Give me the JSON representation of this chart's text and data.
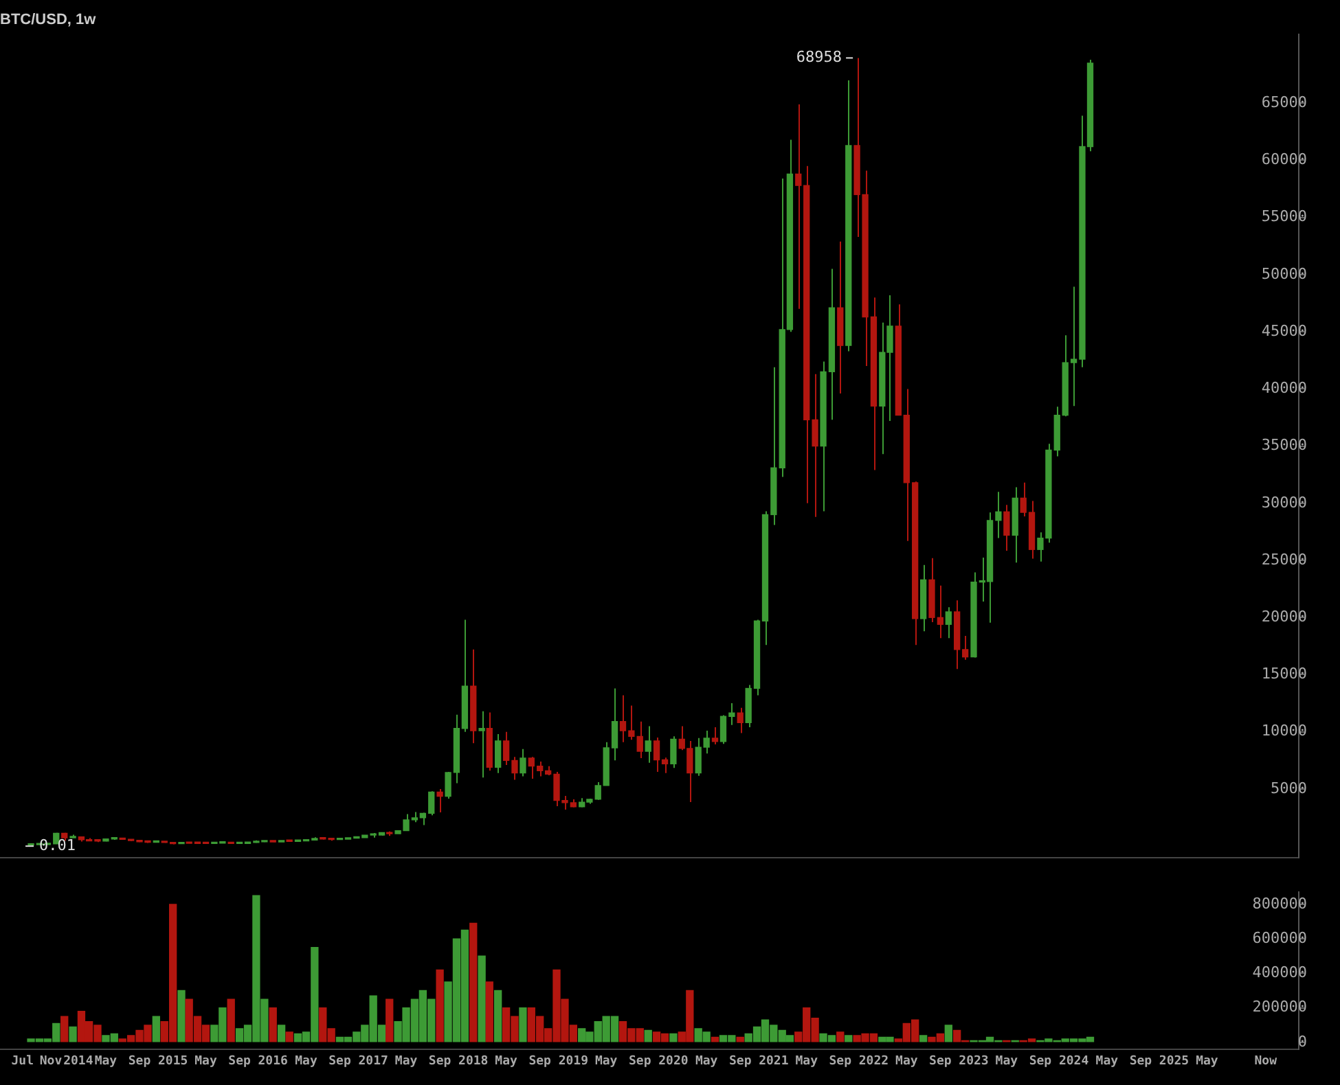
{
  "chart_data": [
    {
      "type": "candlestick",
      "title": "BTC/USD, 1w",
      "x": [
        "2013-08",
        "2013-09",
        "2013-10",
        "2013-11",
        "2013-12",
        "2014-01",
        "2014-02",
        "2014-03",
        "2014-04",
        "2014-05",
        "2014-06",
        "2014-07",
        "2014-08",
        "2014-09",
        "2014-10",
        "2014-11",
        "2014-12",
        "2015-01",
        "2015-02",
        "2015-03",
        "2015-04",
        "2015-05",
        "2015-06",
        "2015-07",
        "2015-08",
        "2015-09",
        "2015-10",
        "2015-11",
        "2015-12",
        "2016-01",
        "2016-02",
        "2016-03",
        "2016-04",
        "2016-05",
        "2016-06",
        "2016-07",
        "2016-08",
        "2016-09",
        "2016-10",
        "2016-11",
        "2016-12",
        "2017-01",
        "2017-02",
        "2017-03",
        "2017-04",
        "2017-05",
        "2017-06",
        "2017-07",
        "2017-08",
        "2017-09",
        "2017-10",
        "2017-11",
        "2017-12",
        "2018-01",
        "2018-02",
        "2018-03",
        "2018-04",
        "2018-05",
        "2018-06",
        "2018-07",
        "2018-08",
        "2018-09",
        "2018-10",
        "2018-11",
        "2018-12",
        "2019-01",
        "2019-02",
        "2019-03",
        "2019-04",
        "2019-05",
        "2019-06",
        "2019-07",
        "2019-08",
        "2019-09",
        "2019-10",
        "2019-11",
        "2019-12",
        "2020-01",
        "2020-02",
        "2020-03",
        "2020-04",
        "2020-05",
        "2020-06",
        "2020-07",
        "2020-08",
        "2020-09",
        "2020-10",
        "2020-11",
        "2020-12",
        "2021-01",
        "2021-02",
        "2021-03",
        "2021-04",
        "2021-05",
        "2021-06",
        "2021-07",
        "2021-08",
        "2021-09",
        "2021-10",
        "2021-11",
        "2021-12",
        "2022-01",
        "2022-02",
        "2022-03",
        "2022-04",
        "2022-05",
        "2022-06",
        "2022-07",
        "2022-08",
        "2022-09",
        "2022-10",
        "2022-11",
        "2022-12",
        "2023-01",
        "2023-02",
        "2023-03",
        "2023-04",
        "2023-05",
        "2023-06",
        "2023-07",
        "2023-08",
        "2023-09",
        "2023-10",
        "2023-11",
        "2023-12",
        "2024-01",
        "2024-02",
        "2024-03"
      ],
      "ohlc": [
        [
          95,
          130,
          0.01,
          125
        ],
        [
          125,
          145,
          120,
          135
        ],
        [
          135,
          215,
          105,
          205
        ],
        [
          205,
          1170,
          200,
          1130
        ],
        [
          1130,
          1160,
          480,
          730
        ],
        [
          730,
          1000,
          730,
          810
        ],
        [
          810,
          850,
          400,
          560
        ],
        [
          560,
          700,
          440,
          450
        ],
        [
          450,
          550,
          350,
          445
        ],
        [
          445,
          630,
          420,
          625
        ],
        [
          625,
          680,
          550,
          640
        ],
        [
          640,
          650,
          565,
          585
        ],
        [
          585,
          600,
          440,
          480
        ],
        [
          480,
          490,
          360,
          385
        ],
        [
          385,
          415,
          275,
          340
        ],
        [
          340,
          460,
          315,
          375
        ],
        [
          375,
          385,
          300,
          320
        ],
        [
          320,
          320,
          165,
          215
        ],
        [
          215,
          265,
          210,
          255
        ],
        [
          255,
          300,
          235,
          245
        ],
        [
          245,
          260,
          215,
          235
        ],
        [
          235,
          250,
          225,
          230
        ],
        [
          230,
          265,
          220,
          265
        ],
        [
          265,
          320,
          250,
          285
        ],
        [
          285,
          290,
          195,
          230
        ],
        [
          230,
          245,
          225,
          235
        ],
        [
          235,
          330,
          235,
          315
        ],
        [
          315,
          500,
          300,
          375
        ],
        [
          375,
          470,
          350,
          430
        ],
        [
          430,
          460,
          360,
          370
        ],
        [
          370,
          440,
          365,
          435
        ],
        [
          435,
          440,
          400,
          415
        ],
        [
          415,
          470,
          410,
          450
        ],
        [
          450,
          550,
          440,
          530
        ],
        [
          530,
          780,
          525,
          670
        ],
        [
          670,
          690,
          580,
          625
        ],
        [
          625,
          625,
          470,
          575
        ],
        [
          575,
          620,
          570,
          610
        ],
        [
          610,
          720,
          605,
          700
        ],
        [
          700,
          755,
          680,
          745
        ],
        [
          745,
          975,
          740,
          960
        ],
        [
          960,
          1150,
          750,
          965
        ],
        [
          965,
          1200,
          920,
          1190
        ],
        [
          1190,
          1290,
          890,
          1080
        ],
        [
          1080,
          1360,
          1080,
          1350
        ],
        [
          1350,
          2800,
          1350,
          2300
        ],
        [
          2300,
          2980,
          2100,
          2480
        ],
        [
          2480,
          2920,
          1840,
          2870
        ],
        [
          2870,
          4800,
          2700,
          4730
        ],
        [
          4730,
          5000,
          2950,
          4360
        ],
        [
          4360,
          6500,
          4150,
          6450
        ],
        [
          6450,
          11500,
          5500,
          10300
        ],
        [
          10300,
          19800,
          10000,
          14000
        ],
        [
          14000,
          17200,
          9000,
          10100
        ],
        [
          10100,
          11800,
          6000,
          10300
        ],
        [
          10300,
          11700,
          6600,
          6900
        ],
        [
          6900,
          9800,
          6400,
          9200
        ],
        [
          9200,
          10000,
          7100,
          7500
        ],
        [
          7500,
          7800,
          5800,
          6400
        ],
        [
          6400,
          8500,
          6100,
          7700
        ],
        [
          7700,
          7800,
          5900,
          7000
        ],
        [
          7000,
          7400,
          6100,
          6600
        ],
        [
          6600,
          7000,
          6200,
          6300
        ],
        [
          6300,
          6500,
          3500,
          4000
        ],
        [
          4000,
          4400,
          3200,
          3800
        ],
        [
          3800,
          4100,
          3400,
          3450
        ],
        [
          3450,
          4200,
          3400,
          3850
        ],
        [
          3850,
          4150,
          3700,
          4100
        ],
        [
          4100,
          5600,
          4050,
          5300
        ],
        [
          5300,
          9100,
          5300,
          8600
        ],
        [
          8600,
          13800,
          7500,
          10900
        ],
        [
          10900,
          13200,
          9100,
          10100
        ],
        [
          10100,
          12300,
          9300,
          9600
        ],
        [
          9600,
          10900,
          7700,
          8300
        ],
        [
          8300,
          10500,
          7300,
          9200
        ],
        [
          9200,
          9500,
          6500,
          7550
        ],
        [
          7550,
          7750,
          6400,
          7200
        ],
        [
          7200,
          9600,
          6850,
          9350
        ],
        [
          9350,
          10500,
          8400,
          8550
        ],
        [
          8550,
          9200,
          3850,
          6400
        ],
        [
          6400,
          9450,
          6150,
          8650
        ],
        [
          8650,
          10100,
          8100,
          9450
        ],
        [
          9450,
          10400,
          8900,
          9150
        ],
        [
          9150,
          11450,
          8950,
          11350
        ],
        [
          11350,
          12500,
          10600,
          11650
        ],
        [
          11650,
          12100,
          9900,
          10800
        ],
        [
          10800,
          14100,
          10400,
          13800
        ],
        [
          13800,
          19800,
          13200,
          19700
        ],
        [
          19700,
          29300,
          17600,
          29000
        ],
        [
          29000,
          41900,
          28100,
          33100
        ],
        [
          33100,
          58400,
          32300,
          45200
        ],
        [
          45200,
          61800,
          45000,
          58800
        ],
        [
          58800,
          64900,
          47000,
          57800
        ],
        [
          57800,
          59500,
          30000,
          37300
        ],
        [
          37300,
          41300,
          28800,
          35000
        ],
        [
          35000,
          42400,
          29300,
          41500
        ],
        [
          41500,
          50500,
          37300,
          47100
        ],
        [
          47100,
          52900,
          39600,
          43800
        ],
        [
          43800,
          67000,
          43300,
          61300
        ],
        [
          61300,
          68958,
          53300,
          57000
        ],
        [
          57000,
          59100,
          42000,
          46300
        ],
        [
          46300,
          48000,
          32900,
          38500
        ],
        [
          38500,
          45800,
          34300,
          43200
        ],
        [
          43200,
          48200,
          37200,
          45500
        ],
        [
          45500,
          47400,
          37700,
          37700
        ],
        [
          37700,
          40000,
          26700,
          31800
        ],
        [
          31800,
          31900,
          17600,
          19900
        ],
        [
          19900,
          24600,
          18800,
          23300
        ],
        [
          23300,
          25200,
          19600,
          20000
        ],
        [
          20000,
          22800,
          18200,
          19400
        ],
        [
          19400,
          20900,
          18200,
          20500
        ],
        [
          20500,
          21500,
          15500,
          17200
        ],
        [
          17200,
          18400,
          16300,
          16550
        ],
        [
          16550,
          23950,
          16500,
          23100
        ],
        [
          23100,
          25250,
          21400,
          23150
        ],
        [
          23150,
          29200,
          19550,
          28500
        ],
        [
          28500,
          31000,
          26950,
          29250
        ],
        [
          29250,
          29850,
          25850,
          27200
        ],
        [
          27200,
          31400,
          24800,
          30450
        ],
        [
          30450,
          31800,
          28850,
          29200
        ],
        [
          29200,
          30200,
          25150,
          25950
        ],
        [
          25950,
          27450,
          24900,
          26950
        ],
        [
          26950,
          35200,
          26550,
          34650
        ],
        [
          34650,
          38450,
          34100,
          37700
        ],
        [
          37700,
          44700,
          37600,
          42300
        ],
        [
          42300,
          48950,
          38500,
          42600
        ],
        [
          42600,
          63900,
          41900,
          61200
        ],
        [
          61200,
          68800,
          60800,
          68500
        ]
      ],
      "colors": [
        "#3d9b35",
        "#3d9b35",
        "#3d9b35",
        "#3d9b35",
        "#b3160f",
        "#3d9b35",
        "#b3160f",
        "#b3160f",
        "#b3160f",
        "#3d9b35",
        "#3d9b35",
        "#b3160f",
        "#b3160f",
        "#b3160f",
        "#b3160f",
        "#3d9b35",
        "#b3160f",
        "#b3160f",
        "#3d9b35",
        "#b3160f",
        "#b3160f",
        "#b3160f",
        "#3d9b35",
        "#3d9b35",
        "#b3160f",
        "#3d9b35",
        "#3d9b35",
        "#3d9b35",
        "#3d9b35",
        "#b3160f",
        "#3d9b35",
        "#b3160f",
        "#3d9b35",
        "#3d9b35",
        "#3d9b35",
        "#b3160f",
        "#b3160f",
        "#3d9b35",
        "#3d9b35",
        "#3d9b35",
        "#3d9b35",
        "#3d9b35",
        "#3d9b35",
        "#b3160f",
        "#3d9b35",
        "#3d9b35",
        "#3d9b35",
        "#3d9b35",
        "#3d9b35",
        "#b3160f",
        "#3d9b35",
        "#3d9b35",
        "#3d9b35",
        "#b3160f",
        "#3d9b35",
        "#b3160f",
        "#3d9b35",
        "#b3160f",
        "#b3160f",
        "#3d9b35",
        "#b3160f",
        "#b3160f",
        "#b3160f",
        "#b3160f",
        "#b3160f",
        "#b3160f",
        "#3d9b35",
        "#3d9b35",
        "#3d9b35",
        "#3d9b35",
        "#3d9b35",
        "#b3160f",
        "#b3160f",
        "#b3160f",
        "#3d9b35",
        "#b3160f",
        "#b3160f",
        "#3d9b35",
        "#b3160f",
        "#b3160f",
        "#3d9b35",
        "#3d9b35",
        "#b3160f",
        "#3d9b35",
        "#3d9b35",
        "#b3160f",
        "#3d9b35",
        "#3d9b35",
        "#3d9b35",
        "#3d9b35",
        "#3d9b35",
        "#3d9b35",
        "#b3160f",
        "#b3160f",
        "#b3160f",
        "#3d9b35",
        "#3d9b35",
        "#b3160f",
        "#3d9b35",
        "#b3160f",
        "#b3160f",
        "#b3160f",
        "#3d9b35",
        "#3d9b35",
        "#b3160f",
        "#b3160f",
        "#b3160f",
        "#3d9b35",
        "#b3160f",
        "#b3160f",
        "#3d9b35",
        "#b3160f",
        "#b3160f",
        "#3d9b35",
        "#3d9b35",
        "#3d9b35",
        "#3d9b35",
        "#b3160f",
        "#3d9b35",
        "#b3160f",
        "#b3160f",
        "#3d9b35",
        "#3d9b35",
        "#3d9b35",
        "#3d9b35",
        "#3d9b35",
        "#3d9b35",
        "#3d9b35"
      ],
      "xlim": [
        "2013-04-10",
        "2026-04-01"
      ],
      "ylim": [
        -1000,
        71000
      ],
      "yticks": [
        5000,
        10000,
        15000,
        20000,
        25000,
        30000,
        35000,
        40000,
        45000,
        50000,
        55000,
        60000,
        65000
      ],
      "tick_labels": "y",
      "annotations": [
        {
          "text": "68958",
          "x": "2021-11",
          "y": 68958
        },
        {
          "text": "0.01",
          "x": "2013-08",
          "y": 0.01
        }
      ]
    },
    {
      "type": "bar",
      "x": [
        "2013-08",
        "2013-09",
        "2013-10",
        "2013-11",
        "2013-12",
        "2014-01",
        "2014-02",
        "2014-03",
        "2014-04",
        "2014-05",
        "2014-06",
        "2014-07",
        "2014-08",
        "2014-09",
        "2014-10",
        "2014-11",
        "2014-12",
        "2015-01",
        "2015-02",
        "2015-03",
        "2015-04",
        "2015-05",
        "2015-06",
        "2015-07",
        "2015-08",
        "2015-09",
        "2015-10",
        "2015-11",
        "2015-12",
        "2016-01",
        "2016-02",
        "2016-03",
        "2016-04",
        "2016-05",
        "2016-06",
        "2016-07",
        "2016-08",
        "2016-09",
        "2016-10",
        "2016-11",
        "2016-12",
        "2017-01",
        "2017-02",
        "2017-03",
        "2017-04",
        "2017-05",
        "2017-06",
        "2017-07",
        "2017-08",
        "2017-09",
        "2017-10",
        "2017-11",
        "2017-12",
        "2018-01",
        "2018-02",
        "2018-03",
        "2018-04",
        "2018-05",
        "2018-06",
        "2018-07",
        "2018-08",
        "2018-09",
        "2018-10",
        "2018-11",
        "2018-12",
        "2019-01",
        "2019-02",
        "2019-03",
        "2019-04",
        "2019-05",
        "2019-06",
        "2019-07",
        "2019-08",
        "2019-09",
        "2019-10",
        "2019-11",
        "2019-12",
        "2020-01",
        "2020-02",
        "2020-03",
        "2020-04",
        "2020-05",
        "2020-06",
        "2020-07",
        "2020-08",
        "2020-09",
        "2020-10",
        "2020-11",
        "2020-12",
        "2021-01",
        "2021-02",
        "2021-03",
        "2021-04",
        "2021-05",
        "2021-06",
        "2021-07",
        "2021-08",
        "2021-09",
        "2021-10",
        "2021-11",
        "2021-12",
        "2022-01",
        "2022-02",
        "2022-03",
        "2022-04",
        "2022-05",
        "2022-06",
        "2022-07",
        "2022-08",
        "2022-09",
        "2022-10",
        "2022-11",
        "2022-12",
        "2023-01",
        "2023-02",
        "2023-03",
        "2023-04",
        "2023-05",
        "2023-06",
        "2023-07",
        "2023-08",
        "2023-09",
        "2023-10",
        "2023-11",
        "2023-12",
        "2024-01",
        "2024-02",
        "2024-03"
      ],
      "values": [
        20000,
        20000,
        20000,
        110000,
        150000,
        90000,
        180000,
        120000,
        100000,
        40000,
        50000,
        20000,
        40000,
        70000,
        100000,
        150000,
        120000,
        800000,
        300000,
        250000,
        150000,
        100000,
        100000,
        200000,
        250000,
        80000,
        100000,
        850000,
        250000,
        200000,
        100000,
        60000,
        50000,
        60000,
        550000,
        200000,
        80000,
        30000,
        30000,
        60000,
        100000,
        270000,
        100000,
        250000,
        120000,
        200000,
        250000,
        300000,
        250000,
        420000,
        350000,
        600000,
        650000,
        690000,
        500000,
        350000,
        300000,
        200000,
        150000,
        200000,
        200000,
        150000,
        80000,
        420000,
        250000,
        100000,
        80000,
        60000,
        120000,
        150000,
        150000,
        120000,
        80000,
        80000,
        70000,
        60000,
        50000,
        50000,
        60000,
        300000,
        80000,
        60000,
        30000,
        40000,
        40000,
        30000,
        50000,
        90000,
        130000,
        100000,
        70000,
        40000,
        60000,
        200000,
        140000,
        50000,
        40000,
        60000,
        40000,
        40000,
        50000,
        50000,
        30000,
        30000,
        20000,
        110000,
        130000,
        40000,
        30000,
        50000,
        100000,
        70000,
        10000,
        10000,
        10000,
        30000,
        10000,
        10000,
        10000,
        10000,
        20000,
        10000,
        20000,
        10000,
        20000,
        20000,
        20000,
        30000
      ],
      "colors": [
        "#3d9b35",
        "#3d9b35",
        "#3d9b35",
        "#3d9b35",
        "#b3160f",
        "#3d9b35",
        "#b3160f",
        "#b3160f",
        "#b3160f",
        "#3d9b35",
        "#3d9b35",
        "#b3160f",
        "#b3160f",
        "#b3160f",
        "#b3160f",
        "#3d9b35",
        "#b3160f",
        "#b3160f",
        "#3d9b35",
        "#b3160f",
        "#b3160f",
        "#b3160f",
        "#3d9b35",
        "#3d9b35",
        "#b3160f",
        "#3d9b35",
        "#3d9b35",
        "#3d9b35",
        "#3d9b35",
        "#b3160f",
        "#3d9b35",
        "#b3160f",
        "#3d9b35",
        "#3d9b35",
        "#3d9b35",
        "#b3160f",
        "#b3160f",
        "#3d9b35",
        "#3d9b35",
        "#3d9b35",
        "#3d9b35",
        "#3d9b35",
        "#3d9b35",
        "#b3160f",
        "#3d9b35",
        "#3d9b35",
        "#3d9b35",
        "#3d9b35",
        "#3d9b35",
        "#b3160f",
        "#3d9b35",
        "#3d9b35",
        "#3d9b35",
        "#b3160f",
        "#3d9b35",
        "#b3160f",
        "#3d9b35",
        "#b3160f",
        "#b3160f",
        "#3d9b35",
        "#b3160f",
        "#b3160f",
        "#b3160f",
        "#b3160f",
        "#b3160f",
        "#b3160f",
        "#3d9b35",
        "#3d9b35",
        "#3d9b35",
        "#3d9b35",
        "#3d9b35",
        "#b3160f",
        "#b3160f",
        "#b3160f",
        "#3d9b35",
        "#b3160f",
        "#b3160f",
        "#3d9b35",
        "#b3160f",
        "#b3160f",
        "#3d9b35",
        "#3d9b35",
        "#b3160f",
        "#3d9b35",
        "#3d9b35",
        "#b3160f",
        "#3d9b35",
        "#3d9b35",
        "#3d9b35",
        "#3d9b35",
        "#3d9b35",
        "#3d9b35",
        "#b3160f",
        "#b3160f",
        "#b3160f",
        "#3d9b35",
        "#3d9b35",
        "#b3160f",
        "#3d9b35",
        "#b3160f",
        "#b3160f",
        "#b3160f",
        "#3d9b35",
        "#3d9b35",
        "#b3160f",
        "#b3160f",
        "#b3160f",
        "#3d9b35",
        "#b3160f",
        "#b3160f",
        "#3d9b35",
        "#b3160f",
        "#b3160f",
        "#3d9b35",
        "#3d9b35",
        "#3d9b35",
        "#3d9b35",
        "#b3160f",
        "#3d9b35",
        "#b3160f",
        "#b3160f",
        "#3d9b35",
        "#3d9b35",
        "#3d9b35",
        "#3d9b35",
        "#3d9b35",
        "#3d9b35",
        "#3d9b35"
      ],
      "xlim": [
        "2013-04-10",
        "2026-04-01"
      ],
      "xticks": [
        {
          "value": "2013-07",
          "label": "Jul"
        },
        {
          "value": "2013-11",
          "label": "Nov"
        },
        {
          "value": "2014-01",
          "label": "2014"
        },
        {
          "value": "2014-05",
          "label": "May"
        },
        {
          "value": "2014-09",
          "label": "Sep"
        },
        {
          "value": "2015-01",
          "label": "2015"
        },
        {
          "value": "2015-05",
          "label": "May"
        },
        {
          "value": "2015-09",
          "label": "Sep"
        },
        {
          "value": "2016-01",
          "label": "2016"
        },
        {
          "value": "2016-05",
          "label": "May"
        },
        {
          "value": "2016-09",
          "label": "Sep"
        },
        {
          "value": "2017-01",
          "label": "2017"
        },
        {
          "value": "2017-05",
          "label": "May"
        },
        {
          "value": "2017-09",
          "label": "Sep"
        },
        {
          "value": "2018-01",
          "label": "2018"
        },
        {
          "value": "2018-05",
          "label": "May"
        },
        {
          "value": "2018-09",
          "label": "Sep"
        },
        {
          "value": "2019-01",
          "label": "2019"
        },
        {
          "value": "2019-05",
          "label": "May"
        },
        {
          "value": "2019-09",
          "label": "Sep"
        },
        {
          "value": "2020-01",
          "label": "2020"
        },
        {
          "value": "2020-05",
          "label": "May"
        },
        {
          "value": "2020-09",
          "label": "Sep"
        },
        {
          "value": "2021-01",
          "label": "2021"
        },
        {
          "value": "2021-05",
          "label": "May"
        },
        {
          "value": "2021-09",
          "label": "Sep"
        },
        {
          "value": "2022-01",
          "label": "2022"
        },
        {
          "value": "2022-05",
          "label": "May"
        },
        {
          "value": "2022-09",
          "label": "Sep"
        },
        {
          "value": "2023-01",
          "label": "2023"
        },
        {
          "value": "2023-05",
          "label": "May"
        },
        {
          "value": "2023-09",
          "label": "Sep"
        },
        {
          "value": "2024-01",
          "label": "2024"
        },
        {
          "value": "2024-05",
          "label": "May"
        },
        {
          "value": "2024-09",
          "label": "Sep"
        },
        {
          "value": "2025-01",
          "label": "2025"
        },
        {
          "value": "2025-05",
          "label": "May"
        },
        {
          "value": "2025-12",
          "label": "Now"
        }
      ],
      "ylim": [
        -40000,
        870000
      ],
      "yticks": [
        0,
        200000,
        400000,
        600000,
        800000
      ]
    }
  ]
}
